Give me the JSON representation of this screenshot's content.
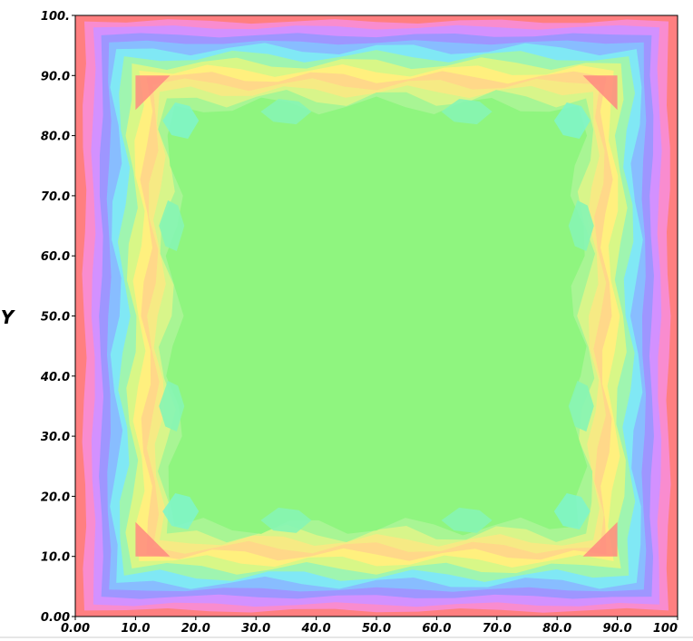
{
  "chart_data": {
    "type": "heatmap",
    "style": "filled-contour",
    "xlabel": "",
    "ylabel": "Y",
    "xlim": [
      0,
      100
    ],
    "ylim": [
      0,
      100
    ],
    "x_tick_labels": [
      "0.00",
      "10.0",
      "20.0",
      "30.0",
      "40.0",
      "50.0",
      "60.0",
      "70.0",
      "80.0",
      "90.0",
      "100"
    ],
    "y_tick_labels": [
      "0.00",
      "10.0",
      "20.0",
      "30.0",
      "40.0",
      "50.0",
      "60.0",
      "70.0",
      "80.0",
      "90.0",
      "100."
    ],
    "colormap": [
      "#ff7f7f",
      "#ff8fd2",
      "#d28fff",
      "#9a95ff",
      "#89b8ff",
      "#80e8ff",
      "#7fffd7",
      "#b2ff9c",
      "#e8f984",
      "#fff07f",
      "#ffd07f",
      "#ffa77f",
      "#ff8c7f",
      "#ff8080",
      "#7fffa0",
      "#8ff57f"
    ],
    "levels": [
      {
        "x": [
          0,
          100
        ],
        "y": [
          0,
          100
        ],
        "fill": "#ff7f80"
      },
      {
        "x": [
          1.5,
          98.5
        ],
        "y": [
          1.0,
          99.0
        ],
        "fill": "#f98ccf"
      },
      {
        "x": [
          3.0,
          97.0
        ],
        "y": [
          2.0,
          98.0
        ],
        "fill": "#d391ff"
      },
      {
        "x": [
          4.3,
          95.7
        ],
        "y": [
          3.3,
          96.7
        ],
        "fill": "#9e96ff"
      },
      {
        "x": [
          5.6,
          94.4
        ],
        "y": [
          4.5,
          95.5
        ],
        "fill": "#88bdff"
      },
      {
        "x": [
          6.8,
          93.2
        ],
        "y": [
          5.6,
          94.4
        ],
        "fill": "#80e8f5"
      },
      {
        "x": [
          8.1,
          91.9
        ],
        "y": [
          6.8,
          93.2
        ],
        "fill": "#9ff5b0"
      },
      {
        "x": [
          9.4,
          90.6
        ],
        "y": [
          8.0,
          92.0
        ],
        "fill": "#d8f787"
      },
      {
        "x": [
          10.6,
          89.4
        ],
        "y": [
          9.2,
          90.8
        ],
        "fill": "#fff07e"
      },
      {
        "x": [
          11.8,
          88.2
        ],
        "y": [
          10.3,
          89.7
        ],
        "fill": "#ffd889"
      },
      {
        "x": [
          12.9,
          87.1
        ],
        "y": [
          11.5,
          88.5
        ],
        "fill": "#f6ea84"
      },
      {
        "x": [
          14.0,
          86.0
        ],
        "y": [
          12.7,
          87.3
        ],
        "fill": "#d8f58a"
      },
      {
        "x": [
          15.2,
          84.8
        ],
        "y": [
          13.8,
          86.2
        ],
        "fill": "#a8f594"
      },
      {
        "x": [
          16.5,
          83.5
        ],
        "y": [
          15.0,
          85.0
        ],
        "fill": "#8ff57f"
      }
    ],
    "hotspots": [
      {
        "x": 17.5,
        "y": 17.5,
        "fill": "#80f5c8"
      },
      {
        "x": 82.5,
        "y": 17.5,
        "fill": "#80f5c8"
      },
      {
        "x": 17.5,
        "y": 82.5,
        "fill": "#80f5c8"
      },
      {
        "x": 82.5,
        "y": 82.5,
        "fill": "#80f5c8"
      },
      {
        "x": 35.0,
        "y": 16.0,
        "fill": "#86f5b4"
      },
      {
        "x": 65.0,
        "y": 16.0,
        "fill": "#86f5b4"
      },
      {
        "x": 35.0,
        "y": 84.0,
        "fill": "#86f5b4"
      },
      {
        "x": 65.0,
        "y": 84.0,
        "fill": "#86f5b4"
      },
      {
        "x": 16.0,
        "y": 35.0,
        "fill": "#86f5b4"
      },
      {
        "x": 16.0,
        "y": 65.0,
        "fill": "#86f5b4"
      },
      {
        "x": 84.0,
        "y": 35.0,
        "fill": "#86f5b4"
      },
      {
        "x": 84.0,
        "y": 65.0,
        "fill": "#86f5b4"
      }
    ],
    "corner_peaks": [
      {
        "x": 10.0,
        "y": 10.0,
        "fill": "#ff8a80"
      },
      {
        "x": 90.0,
        "y": 10.0,
        "fill": "#ff8a80"
      },
      {
        "x": 10.0,
        "y": 90.0,
        "fill": "#ff8a80"
      },
      {
        "x": 90.0,
        "y": 90.0,
        "fill": "#ff8a80"
      }
    ]
  }
}
